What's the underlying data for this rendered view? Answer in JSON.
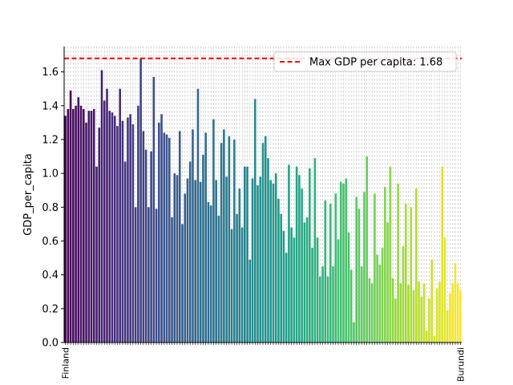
{
  "chart_data": {
    "type": "bar",
    "title": "",
    "xlabel": "",
    "ylabel": "GDP_per_capita",
    "ylim": [
      0,
      1.75
    ],
    "yticks": [
      0.0,
      0.2,
      0.4,
      0.6,
      0.8,
      1.0,
      1.2,
      1.4,
      1.6
    ],
    "ytick_labels": [
      "0.0",
      "0.2",
      "0.4",
      "0.6",
      "0.8",
      "1.0",
      "1.2",
      "1.4",
      "1.6"
    ],
    "grid": "dashed vertical lines",
    "colormap": "viridis",
    "reference_line": {
      "value": 1.68,
      "color": "#ff0000",
      "style": "dashed"
    },
    "legend": {
      "placement": "top-right",
      "entries": [
        "Max GDP per capita: 1.68"
      ]
    },
    "first_category_label": "Finland",
    "last_category_label": "Burundi",
    "values": [
      1.34,
      1.38,
      1.49,
      1.38,
      1.4,
      1.45,
      1.4,
      1.38,
      1.3,
      1.37,
      1.37,
      1.38,
      1.04,
      1.27,
      1.61,
      1.43,
      1.5,
      1.37,
      1.36,
      1.34,
      1.28,
      1.5,
      1.31,
      1.07,
      1.33,
      1.35,
      1.29,
      0.8,
      1.4,
      1.68,
      1.25,
      1.14,
      0.8,
      1.13,
      1.57,
      0.79,
      1.3,
      1.35,
      1.24,
      1.23,
      1.21,
      0.74,
      1.0,
      0.99,
      1.25,
      0.7,
      0.88,
      0.97,
      1.07,
      1.26,
      0.96,
      1.5,
      0.95,
      1.11,
      1.24,
      0.83,
      0.81,
      1.32,
      0.96,
      0.75,
      1.18,
      1.26,
      0.98,
      1.22,
      0.67,
      1.2,
      0.76,
      0.91,
      0.68,
      1.04,
      1.04,
      0.49,
      0.97,
      1.44,
      0.93,
      0.98,
      1.18,
      1.22,
      1.09,
      0.96,
      0.94,
      1.0,
      0.85,
      0.76,
      0.66,
      0.53,
      1.05,
      0.68,
      0.62,
      1.04,
      0.99,
      0.91,
      0.71,
      0.74,
      1.03,
      0.56,
      1.09,
      0.62,
      0.39,
      0.45,
      0.84,
      0.39,
      0.82,
      0.45,
      0.88,
      0.61,
      0.95,
      0.94,
      0.97,
      0.65,
      0.43,
      0.12,
      0.86,
      0.79,
      0.45,
      0.89,
      1.1,
      0.38,
      0.35,
      0.88,
      0.52,
      0.46,
      0.56,
      0.92,
      0.71,
      1.04,
      0.38,
      0.26,
      0.94,
      0.35,
      0.57,
      0.82,
      0.34,
      0.8,
      0.31,
      0.91,
      0.36,
      0.27,
      0.35,
      0.07,
      0.26,
      0.49,
      0.04,
      0.32,
      0.36,
      1.04,
      0.62,
      0.19,
      0.29,
      0.35,
      0.47,
      0.35,
      0.31
    ]
  }
}
